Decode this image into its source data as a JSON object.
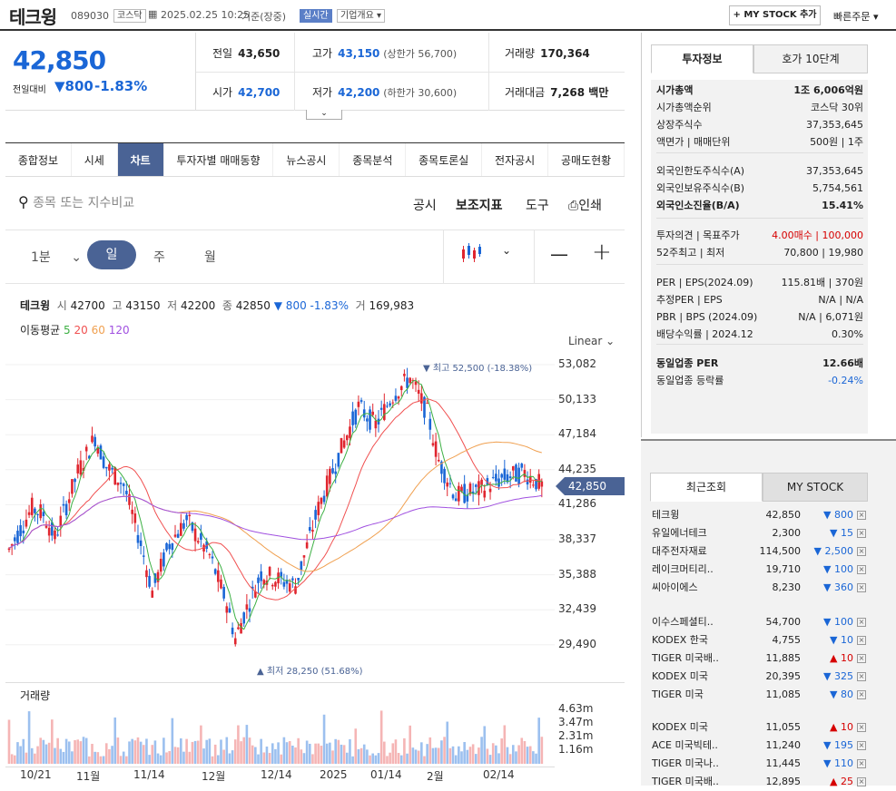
{
  "header": {
    "title": "테크윙",
    "code": "089030",
    "market": "코스닥",
    "datetime": "2025.02.25 10:25",
    "basis": "기준(장중)",
    "realtime": "실시간",
    "company_info": "기업개요",
    "mystock_btn": "+ MY STOCK 추가",
    "quick_order": "빠른주문"
  },
  "price": {
    "current": "42,850",
    "change_label": "전일대비",
    "change_value": "800",
    "change_pct": "-1.83%"
  },
  "quotes": {
    "prev_label": "전일",
    "prev": "43,650",
    "high_label": "고가",
    "high": "43,150",
    "upper_limit": "(상한가 56,700)",
    "volume_label": "거래량",
    "volume": "170,364",
    "open_label": "시가",
    "open": "42,700",
    "low_label": "저가",
    "low": "42,200",
    "lower_limit": "(하한가 30,600)",
    "amount_label": "거래대금",
    "amount": "7,268 백만"
  },
  "tabs": [
    "종합정보",
    "시세",
    "차트",
    "투자자별 매매동향",
    "뉴스공시",
    "종목분석",
    "종목토론실",
    "전자공시",
    "공매도현황"
  ],
  "toolbar": {
    "search_placeholder": "종목 또는 지수비교",
    "disclosure": "공시",
    "indicator": "보조지표",
    "tools": "도구",
    "print": "인쇄"
  },
  "periods": {
    "minute": "1분",
    "day": "일",
    "week": "주",
    "month": "월"
  },
  "chart_header": {
    "name": "테크윙",
    "o_label": "시",
    "o": "42700",
    "h_label": "고",
    "h": "43150",
    "l_label": "저",
    "l": "42200",
    "c_label": "종",
    "c": "42850",
    "chg": "▼ 800 -1.83%",
    "vol_label": "거",
    "vol": "169,983",
    "ma_label": "이동평균",
    "ma5": "5",
    "ma20": "20",
    "ma60": "60",
    "ma120": "120",
    "scale": "Linear",
    "high_note": "▼ 최고 52,500 (-18.38%)",
    "low_note": "▲ 최저 28,250 (51.68%)",
    "current_tag": "42,850",
    "volume_title": "거래량"
  },
  "chart_data": {
    "type": "candlestick",
    "y_ticks": [
      "53,082",
      "50,133",
      "47,184",
      "44,235",
      "41,286",
      "38,337",
      "35,388",
      "32,439",
      "29,490"
    ],
    "vol_ticks": [
      "4.63m",
      "3.47m",
      "2.31m",
      "1.16m"
    ],
    "x_labels": [
      "10/21",
      "11월",
      "11/14",
      "12월",
      "12/14",
      "2025",
      "01/14",
      "2월",
      "02/14"
    ],
    "ylim": [
      28000,
      54000
    ],
    "high": 52500,
    "low": 28250,
    "last": 42850,
    "colors": {
      "up": "#e0262f",
      "down": "#1a66d6",
      "ma5": "#3cb043",
      "ma20": "#f05050",
      "ma60": "#f0a050",
      "ma120": "#a050e0"
    }
  },
  "side": {
    "tab1": "투자정보",
    "tab2": "호가 10단계",
    "rows": [
      [
        "시가총액",
        "1조 6,006억원"
      ],
      [
        "시가총액순위",
        "코스닥 30위"
      ],
      [
        "상장주식수",
        "37,353,645"
      ],
      [
        "액면가 | 매매단위",
        "500원 | 1주"
      ],
      [
        "외국인한도주식수(A)",
        "37,353,645"
      ],
      [
        "외국인보유주식수(B)",
        "5,754,561"
      ],
      [
        "외국인소진율(B/A)",
        "15.41%"
      ],
      [
        "투자의견 | 목표주가",
        "4.00매수 | 100,000"
      ],
      [
        "52주최고 | 최저",
        "70,800 | 19,980"
      ],
      [
        "PER | EPS(2024.09)",
        "115.81배 | 370원"
      ],
      [
        "추정PER | EPS",
        "N/A | N/A"
      ],
      [
        "PBR | BPS (2024.09)",
        "N/A | 6,071원"
      ],
      [
        "배당수익률 | 2024.12",
        "0.30%"
      ],
      [
        "동일업종 PER",
        "12.66배"
      ],
      [
        "동일업종 등락률",
        "-0.24%"
      ]
    ]
  },
  "recent": {
    "tab1": "최근조회",
    "tab2": "MY STOCK",
    "items": [
      [
        "테크윙",
        "42,850",
        "▼ 800",
        "dn"
      ],
      [
        "유일에너테크",
        "2,300",
        "▼ 15",
        "dn"
      ],
      [
        "대주전자재료",
        "114,500",
        "▼ 2,500",
        "dn"
      ],
      [
        "레이크머티리..",
        "19,710",
        "▼ 100",
        "dn"
      ],
      [
        "씨아이에스",
        "8,230",
        "▼ 360",
        "dn"
      ],
      [
        "이수스페셜티..",
        "54,700",
        "▼ 100",
        "dn"
      ],
      [
        "KODEX 한국",
        "4,755",
        "▼ 10",
        "dn"
      ],
      [
        "TIGER 미국배..",
        "11,885",
        "▲ 10",
        "up"
      ],
      [
        "KODEX 미국",
        "20,395",
        "▼ 325",
        "dn"
      ],
      [
        "TIGER 미국",
        "11,085",
        "▼ 80",
        "dn"
      ],
      [
        "KODEX 미국",
        "11,055",
        "▲ 10",
        "up"
      ],
      [
        "ACE 미국빅테..",
        "11,240",
        "▼ 195",
        "dn"
      ],
      [
        "TIGER 미국나..",
        "11,445",
        "▼ 110",
        "dn"
      ],
      [
        "TIGER 미국배..",
        "12,895",
        "▲ 25",
        "up"
      ]
    ]
  }
}
